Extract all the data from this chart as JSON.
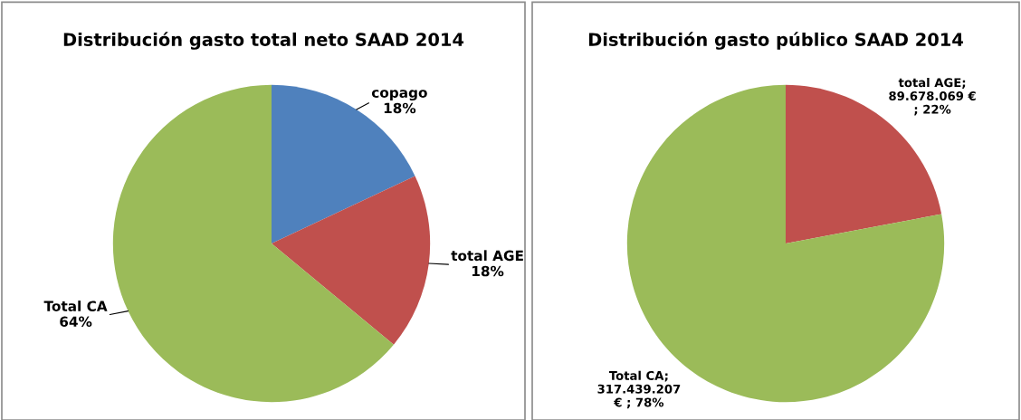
{
  "chart_data": [
    {
      "type": "pie",
      "title": "Distribución gasto total neto SAAD 2014",
      "categories": [
        "copago",
        "total AGE",
        "Total CA"
      ],
      "values": [
        18,
        18,
        64
      ],
      "value_labels": [
        "\n18%",
        "\n18%",
        "\n64%"
      ],
      "colors": [
        "#4f81bd",
        "#c0504d",
        "#9bbb59"
      ]
    },
    {
      "type": "pie",
      "title": "Distribución gasto público SAAD 2014",
      "categories": [
        "total AGE",
        "Total CA"
      ],
      "values": [
        89678069,
        317439207
      ],
      "value_labels": [
        ";\n89.678.069 €\n; 22%",
        ";\n317.439.207\n€ ; 78%"
      ],
      "colors": [
        "#c0504d",
        "#9bbb59"
      ]
    }
  ]
}
